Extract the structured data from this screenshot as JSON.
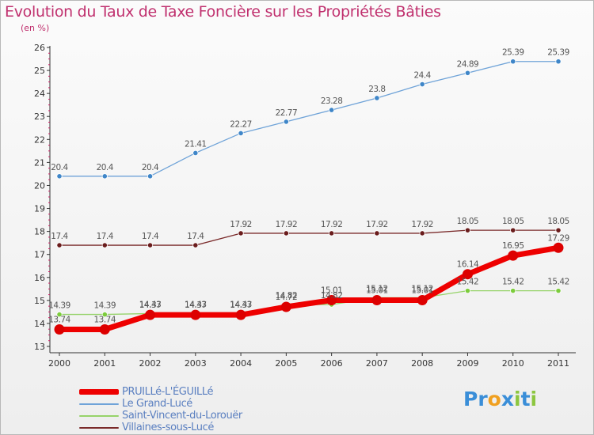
{
  "title": "Evolution du Taux de Taxe Foncière sur les Propriétés Bâties",
  "unit_label": "(en %)",
  "logo": {
    "text": "Proxiti",
    "letters": [
      {
        "char": "P",
        "color": "#3a8ed8"
      },
      {
        "char": "r",
        "color": "#3a8ed8"
      },
      {
        "char": "o",
        "color": "#f0a020"
      },
      {
        "char": "x",
        "color": "#3a8ed8"
      },
      {
        "char": "i",
        "color": "#8cc63f"
      },
      {
        "char": "t",
        "color": "#3a8ed8"
      },
      {
        "char": "i",
        "color": "#8cc63f"
      }
    ]
  },
  "chart_data": {
    "type": "line",
    "title": "Evolution du Taux de Taxe Foncière sur les Propriétés Bâties",
    "ylabel": "(en %)",
    "xlabel": "",
    "x": [
      "2000",
      "2001",
      "2002",
      "2003",
      "2004",
      "2005",
      "2006",
      "2007",
      "2008",
      "2009",
      "2010",
      "2011"
    ],
    "ylim": [
      13,
      26
    ],
    "yticks": [
      13,
      14,
      15,
      16,
      17,
      18,
      19,
      20,
      21,
      22,
      23,
      24,
      25,
      26
    ],
    "grid": false,
    "legend": "bottom-left",
    "series": [
      {
        "name": "Le Grand-Lucé",
        "color": "#6fa3d8",
        "marker": "#3f86c8",
        "values": [
          20.4,
          20.4,
          20.4,
          21.41,
          22.27,
          22.77,
          23.28,
          23.8,
          24.4,
          24.89,
          25.39,
          25.39
        ],
        "labels": [
          "20.4",
          "20.4",
          "20.4",
          "21.41",
          "22.27",
          "22.77",
          "23.28",
          "23.8",
          "24.4",
          "24.89",
          "25.39",
          "25.39"
        ]
      },
      {
        "name": "Villaines-sous-Lucé",
        "color": "#7a2a2a",
        "marker": "#6a1c1c",
        "values": [
          17.4,
          17.4,
          17.4,
          17.4,
          17.92,
          17.92,
          17.92,
          17.92,
          17.92,
          18.05,
          18.05,
          18.05
        ],
        "labels": [
          "17.4",
          "17.4",
          "17.4",
          "17.4",
          "17.92",
          "17.92",
          "17.92",
          "17.92",
          "17.92",
          "18.05",
          "18.05",
          "18.05"
        ]
      },
      {
        "name": "Saint-Vincent-du-Lorouër",
        "color": "#96d36a",
        "marker": "#7ccc3c",
        "values": [
          14.39,
          14.39,
          14.43,
          14.43,
          14.43,
          14.82,
          14.82,
          15.12,
          15.12,
          15.42,
          15.42,
          15.42
        ],
        "labels": [
          "14.39",
          "14.39",
          "14.43",
          "14.43",
          "14.43",
          "14.82",
          "14.82",
          "15.12",
          "15.12",
          "15.42",
          "15.42",
          "15.42"
        ]
      },
      {
        "name": "PRUILLé-L'ÉGUILLé",
        "color": "#ee0000",
        "marker": "#dd0000",
        "values": [
          13.74,
          13.74,
          14.37,
          14.37,
          14.37,
          14.72,
          15.01,
          15.01,
          15.01,
          16.14,
          16.95,
          17.29
        ],
        "labels": [
          "13.74",
          "13.74",
          "14.37",
          "14.37",
          "14.37",
          "14.72",
          "15.01",
          "15.01",
          "15.01",
          "16.14",
          "16.95",
          "17.29"
        ]
      }
    ]
  }
}
